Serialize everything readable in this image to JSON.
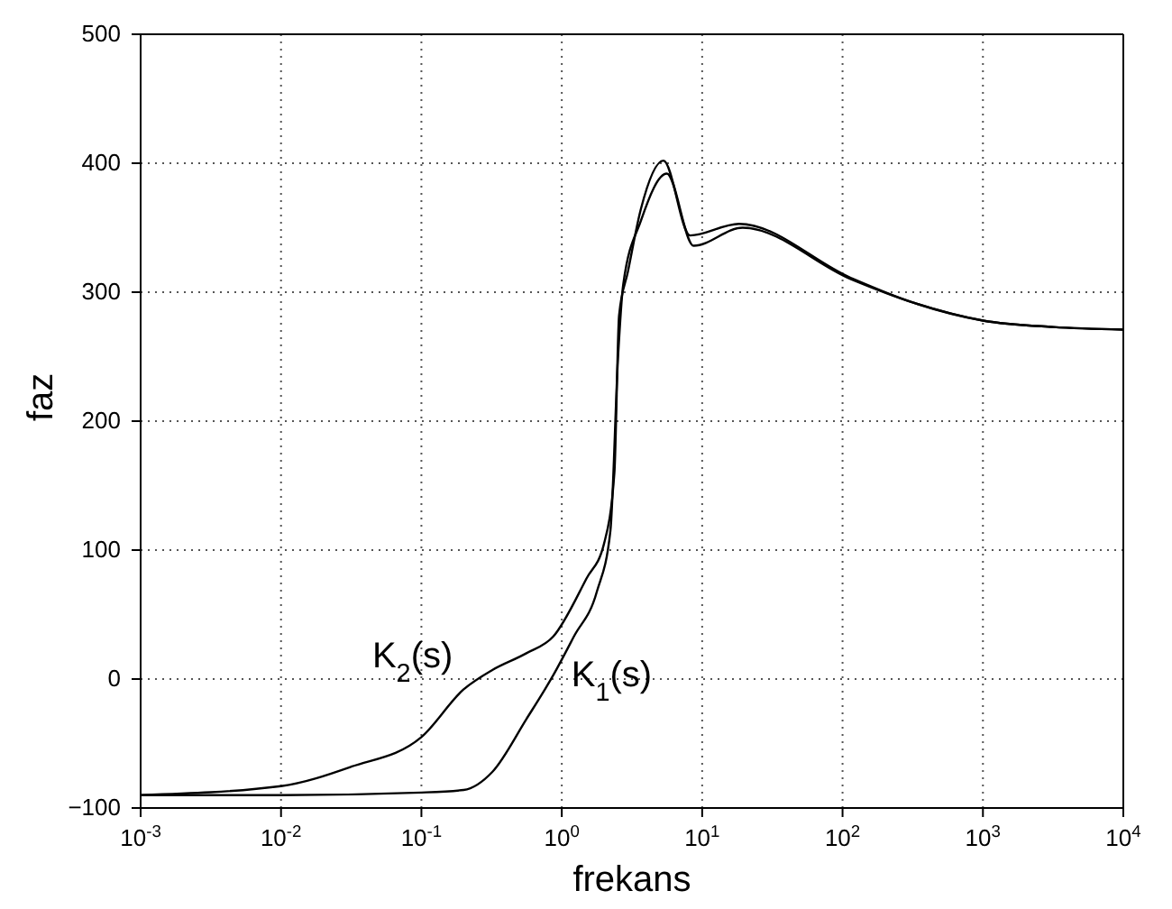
{
  "chart_data": {
    "type": "line",
    "xlabel": "frekans",
    "ylabel": "faz",
    "log": "x",
    "grid": true,
    "line_style": "solid",
    "xlim": [
      0.001,
      10000
    ],
    "ylim": [
      -100,
      500
    ],
    "xticks": [
      {
        "value": 0.001,
        "label": "10$^{-3}$"
      },
      {
        "value": 0.01,
        "label": "10$^{-2}$"
      },
      {
        "value": 0.1,
        "label": "10$^{-1}$"
      },
      {
        "value": 1,
        "label": "10$^{0}$"
      },
      {
        "value": 10,
        "label": "10$^{1}$"
      },
      {
        "value": 100,
        "label": "10$^{2}$"
      },
      {
        "value": 1000,
        "label": "10$^{3}$"
      },
      {
        "value": 10000,
        "label": "10$^{4}$"
      }
    ],
    "yticks": [
      -100,
      0,
      100,
      200,
      300,
      400,
      500
    ],
    "series": [
      {
        "name": "K$_{1}$(s)",
        "color": "#000000",
        "x": [
          0.001,
          0.01,
          0.1,
          0.2,
          0.32,
          0.56,
          0.87,
          1.22,
          1.78,
          2.22,
          2.52,
          2.74,
          3.65,
          5.6,
          8.7,
          19.4,
          115,
          316,
          1000,
          3162,
          10000
        ],
        "values": [
          -90,
          -90,
          -88,
          -86,
          -72,
          -31,
          3,
          33,
          68,
          115,
          251,
          306,
          355,
          392,
          336,
          350,
          310,
          292,
          278,
          273,
          271
        ]
      },
      {
        "name": "K$_{2}$(s)",
        "color": "#000000",
        "x": [
          0.001,
          0.01,
          0.0316,
          0.1,
          0.2,
          0.32,
          0.56,
          0.87,
          1.5,
          2.0,
          2.37,
          2.56,
          2.96,
          3.65,
          5.3,
          8.2,
          18.3,
          115,
          316,
          1000,
          3162,
          10000
        ],
        "values": [
          -90,
          -83,
          -68,
          -45,
          -8,
          7,
          20,
          33,
          78,
          105,
          160,
          282,
          316,
          364,
          402,
          344,
          353,
          311,
          292,
          278,
          273,
          271
        ]
      }
    ]
  }
}
